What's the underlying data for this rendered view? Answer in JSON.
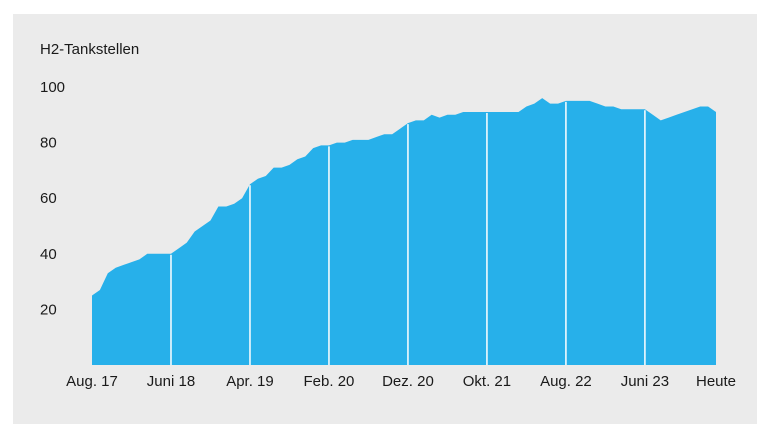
{
  "chart_data": {
    "type": "area",
    "title": "",
    "ylabel": "H2-Tankstellen",
    "xlabel": "",
    "color": "#27b0ea",
    "background": "#ebebeb",
    "ylim": [
      0,
      100
    ],
    "yticks": [
      20,
      40,
      60,
      80,
      100
    ],
    "xticks": [
      "Aug. 17",
      "Juni 18",
      "Apr. 19",
      "Feb. 20",
      "Dez. 20",
      "Okt. 21",
      "Aug. 22",
      "Juni 23",
      "Heute"
    ],
    "grid": false,
    "series": [
      {
        "x": [
          "2017-08-01",
          "2017-09-01",
          "2017-10-01",
          "2017-11-01",
          "2017-12-01",
          "2018-01-01",
          "2018-02-01",
          "2018-03-01",
          "2018-04-01",
          "2018-05-01",
          "2018-06-01",
          "2018-07-01",
          "2018-08-01",
          "2018-09-01",
          "2018-10-01",
          "2018-11-01",
          "2018-12-01",
          "2019-01-01",
          "2019-02-01",
          "2019-03-01",
          "2019-04-01",
          "2019-05-01",
          "2019-06-01",
          "2019-07-01",
          "2019-08-01",
          "2019-09-01",
          "2019-10-01",
          "2019-11-01",
          "2019-12-01",
          "2020-01-01",
          "2020-02-01",
          "2020-03-01",
          "2020-04-01",
          "2020-05-01",
          "2020-06-01",
          "2020-07-01",
          "2020-08-01",
          "2020-09-01",
          "2020-10-01",
          "2020-11-01",
          "2020-12-01",
          "2021-01-01",
          "2021-02-01",
          "2021-03-01",
          "2021-04-01",
          "2021-05-01",
          "2021-06-01",
          "2021-07-01",
          "2021-08-01",
          "2021-09-01",
          "2021-10-01",
          "2021-11-01",
          "2021-12-01",
          "2022-01-01",
          "2022-02-01",
          "2022-03-01",
          "2022-04-01",
          "2022-05-01",
          "2022-06-01",
          "2022-07-01",
          "2022-08-01",
          "2022-09-01",
          "2022-10-01",
          "2022-11-01",
          "2022-12-01",
          "2023-01-01",
          "2023-02-01",
          "2023-03-01",
          "2023-04-01",
          "2023-05-01",
          "2023-06-01",
          "2023-07-01",
          "2023-08-01",
          "2023-09-01",
          "2023-10-01",
          "2023-11-01",
          "2023-12-01",
          "2024-01-01",
          "2024-02-01",
          "2024-03-01"
        ],
        "values": [
          25,
          27,
          33,
          35,
          36,
          37,
          38,
          40,
          40,
          40,
          40,
          42,
          44,
          48,
          50,
          52,
          57,
          57,
          58,
          60,
          65,
          67,
          68,
          71,
          71,
          72,
          74,
          75,
          78,
          79,
          79,
          80,
          80,
          81,
          81,
          81,
          82,
          83,
          83,
          85,
          87,
          88,
          88,
          90,
          89,
          90,
          90,
          91,
          91,
          91,
          91,
          91,
          91,
          91,
          91,
          93,
          94,
          96,
          94,
          94,
          95,
          95,
          95,
          95,
          94,
          93,
          93,
          92,
          92,
          92,
          92,
          90,
          88,
          89,
          90,
          91,
          92,
          93,
          93,
          91
        ]
      }
    ]
  }
}
